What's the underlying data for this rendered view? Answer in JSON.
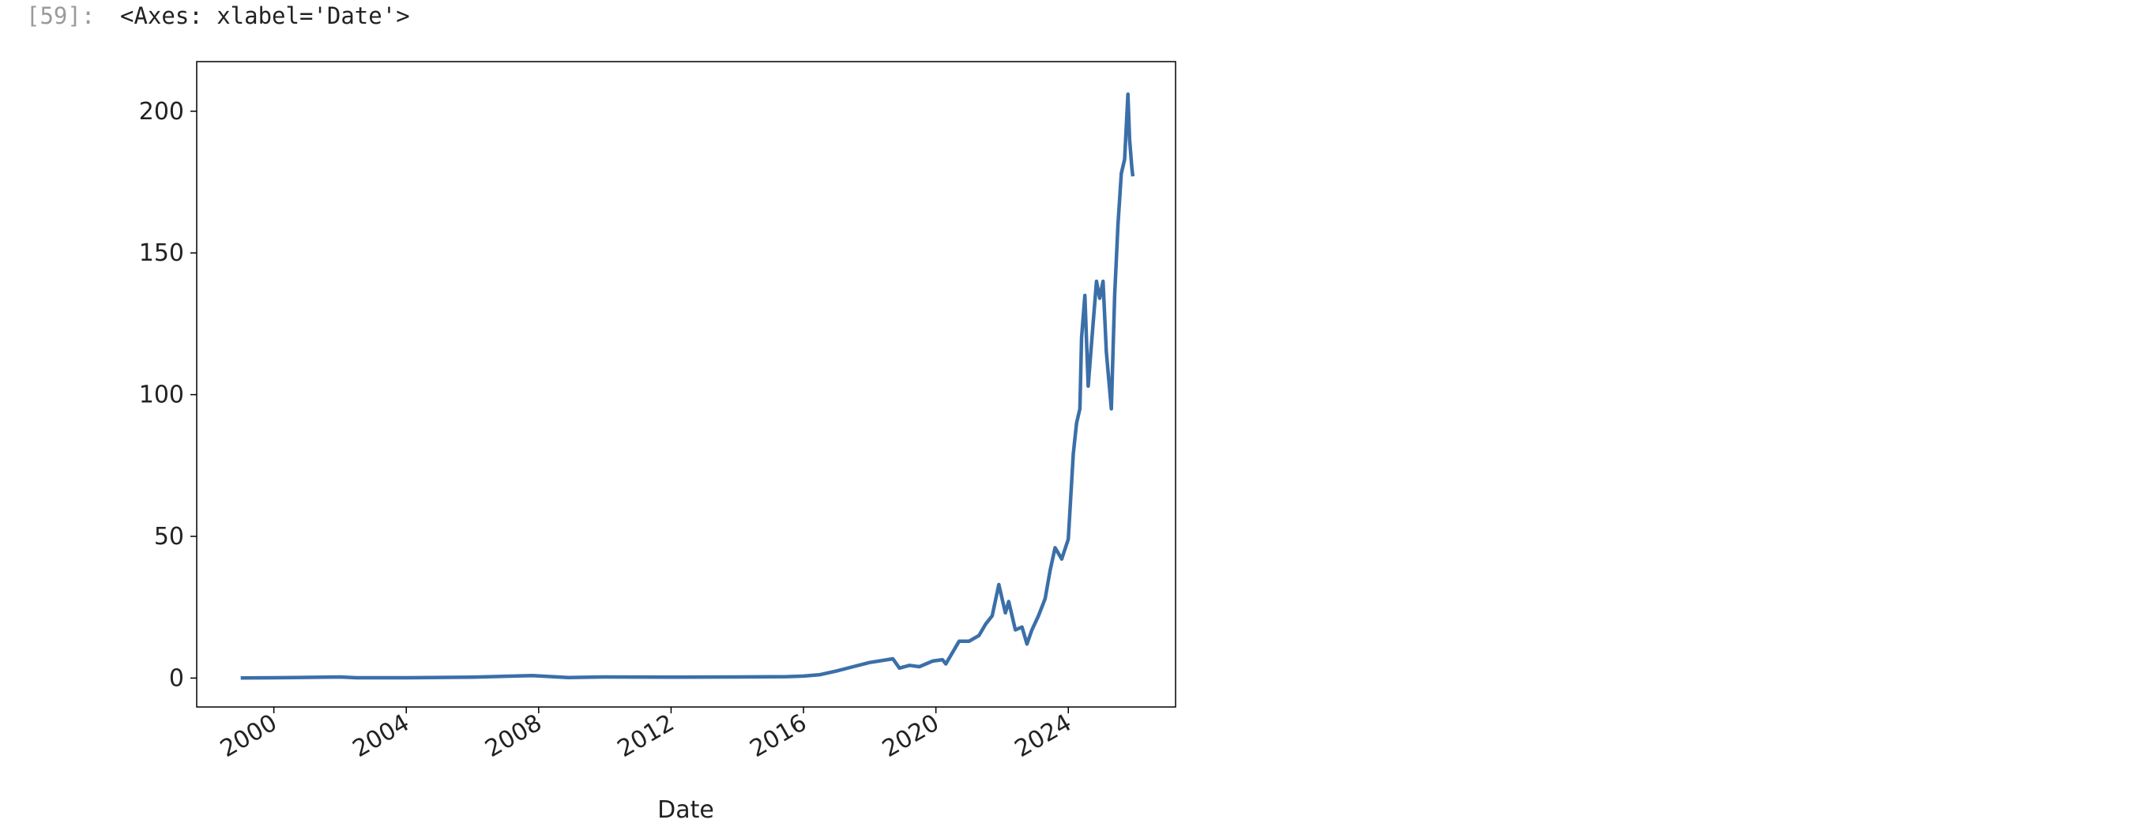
{
  "prompt": "[59]:",
  "output_text": "<Axes: xlabel='Date'>",
  "chart_data": {
    "type": "line",
    "xlabel": "Date",
    "xlim": [
      1997.67,
      2027.24
    ],
    "xticks": [
      2000,
      2004,
      2008,
      2012,
      2016,
      2020,
      2024
    ],
    "ylim": [
      -10.2,
      217.5
    ],
    "yticks": [
      0,
      50,
      100,
      150,
      200
    ],
    "series": [
      {
        "color": "#3b6fa8",
        "x": [
          1999.0,
          2000.0,
          2002.0,
          2002.5,
          2004.0,
          2006.0,
          2007.8,
          2008.9,
          2010.0,
          2012.0,
          2014.0,
          2015.5,
          2016.0,
          2016.5,
          2017.0,
          2017.5,
          2018.0,
          2018.7,
          2018.9,
          2019.2,
          2019.5,
          2019.9,
          2020.2,
          2020.3,
          2020.5,
          2020.7,
          2021.0,
          2021.3,
          2021.5,
          2021.7,
          2021.9,
          2022.0,
          2022.1,
          2022.2,
          2022.4,
          2022.6,
          2022.75,
          2022.9,
          2023.1,
          2023.3,
          2023.45,
          2023.6,
          2023.8,
          2024.0,
          2024.15,
          2024.25,
          2024.35,
          2024.4,
          2024.5,
          2024.6,
          2024.7,
          2024.85,
          2024.95,
          2025.05,
          2025.15,
          2025.3,
          2025.4,
          2025.5,
          2025.6,
          2025.7,
          2025.8,
          2025.85,
          2025.92,
          2025.95
        ],
        "values": [
          0.04,
          0.1,
          0.4,
          0.1,
          0.1,
          0.3,
          0.9,
          0.2,
          0.4,
          0.3,
          0.4,
          0.5,
          0.7,
          1.2,
          2.5,
          4,
          5.5,
          6.8,
          3.5,
          4.5,
          4,
          6,
          6.5,
          5,
          9,
          13,
          13,
          15,
          19,
          22,
          33,
          28,
          23,
          27,
          17,
          18,
          12,
          17,
          22,
          28,
          38,
          46,
          42,
          49,
          79,
          90,
          95,
          120,
          135,
          103,
          118,
          140,
          134,
          140,
          115,
          95,
          135,
          160,
          178,
          183,
          206,
          190,
          180,
          177
        ]
      }
    ]
  }
}
